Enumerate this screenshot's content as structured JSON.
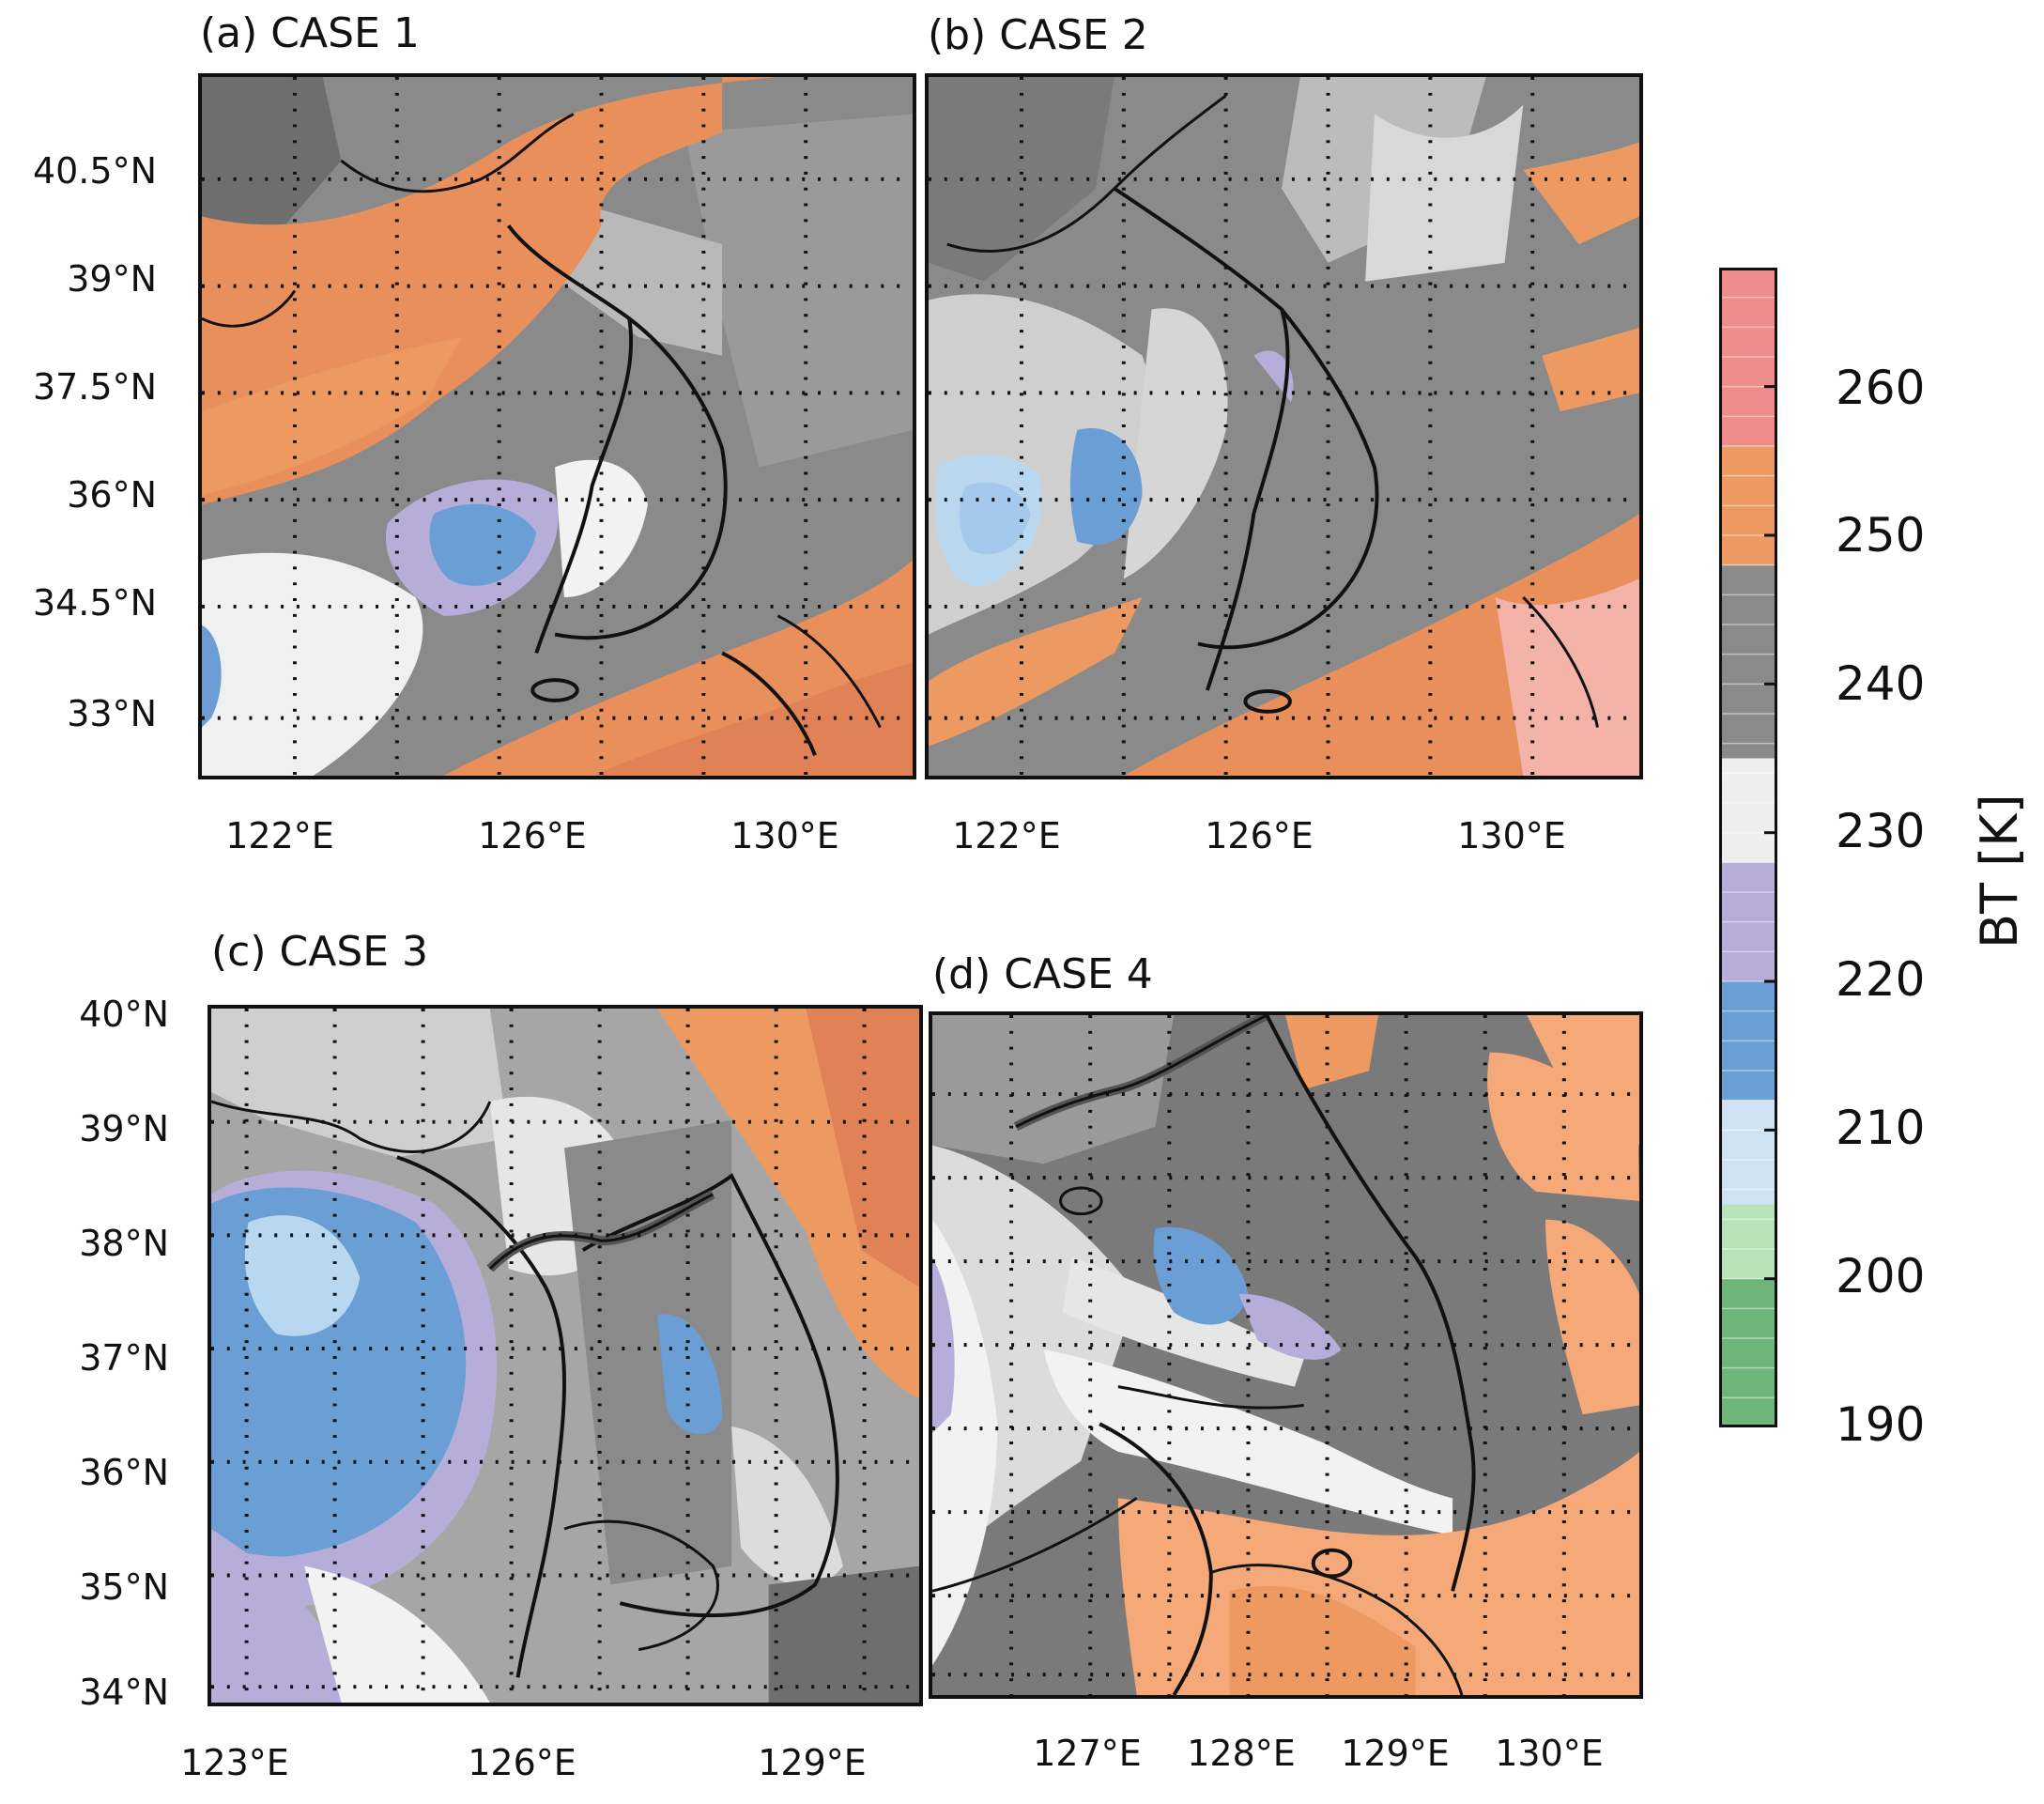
{
  "panels": [
    {
      "id": "a",
      "title": "(a) CASE 1",
      "lat_labels": [
        "40.5°N",
        "39°N",
        "37.5°N",
        "36°N",
        "34.5°N",
        "33°N"
      ],
      "lon_labels": [
        "122°E",
        "126°E",
        "130°E"
      ]
    },
    {
      "id": "b",
      "title": "(b) CASE 2",
      "lat_labels": [],
      "lon_labels": [
        "122°E",
        "126°E",
        "130°E"
      ]
    },
    {
      "id": "c",
      "title": "(c) CASE 3",
      "lat_labels": [
        "40°N",
        "39°N",
        "38°N",
        "37°N",
        "36°N",
        "35°N",
        "34°N"
      ],
      "lon_labels": [
        "123°E",
        "126°E",
        "129°E"
      ]
    },
    {
      "id": "d",
      "title": "(d) CASE 4",
      "lat_labels": [],
      "lon_labels": [
        "127°E",
        "128°E",
        "129°E",
        "130°E"
      ]
    }
  ],
  "colorbar": {
    "label": "BT [K]",
    "ticks": [
      "260",
      "250",
      "240",
      "230",
      "220",
      "210",
      "200",
      "190"
    ],
    "range": [
      190,
      268
    ],
    "bands": [
      {
        "from": 190,
        "to": 200,
        "color": "#6fb57a"
      },
      {
        "from": 200,
        "to": 205,
        "color": "#b9e2b8"
      },
      {
        "from": 205,
        "to": 212,
        "color": "#cfe2f3"
      },
      {
        "from": 212,
        "to": 220,
        "color": "#6a9ed4"
      },
      {
        "from": 220,
        "to": 228,
        "color": "#b6aed8"
      },
      {
        "from": 228,
        "to": 235,
        "color": "#eeeeee"
      },
      {
        "from": 235,
        "to": 248,
        "color": "#8a8a8a"
      },
      {
        "from": 248,
        "to": 256,
        "color": "#ec9a62"
      },
      {
        "from": 256,
        "to": 268,
        "color": "#ee8b8b"
      }
    ]
  },
  "colors": {
    "warm": "#e98f5b",
    "warm_light": "#f5a878",
    "gray_dark": "#6e6e6e",
    "gray_mid": "#8f8f8f",
    "gray_light": "#c4c4c4",
    "white_cloud": "#f2f2f2",
    "lavender": "#b7b0dc",
    "blue": "#6c9fd6",
    "light_blue": "#b9d8f0",
    "pink": "#f4b3a8"
  }
}
